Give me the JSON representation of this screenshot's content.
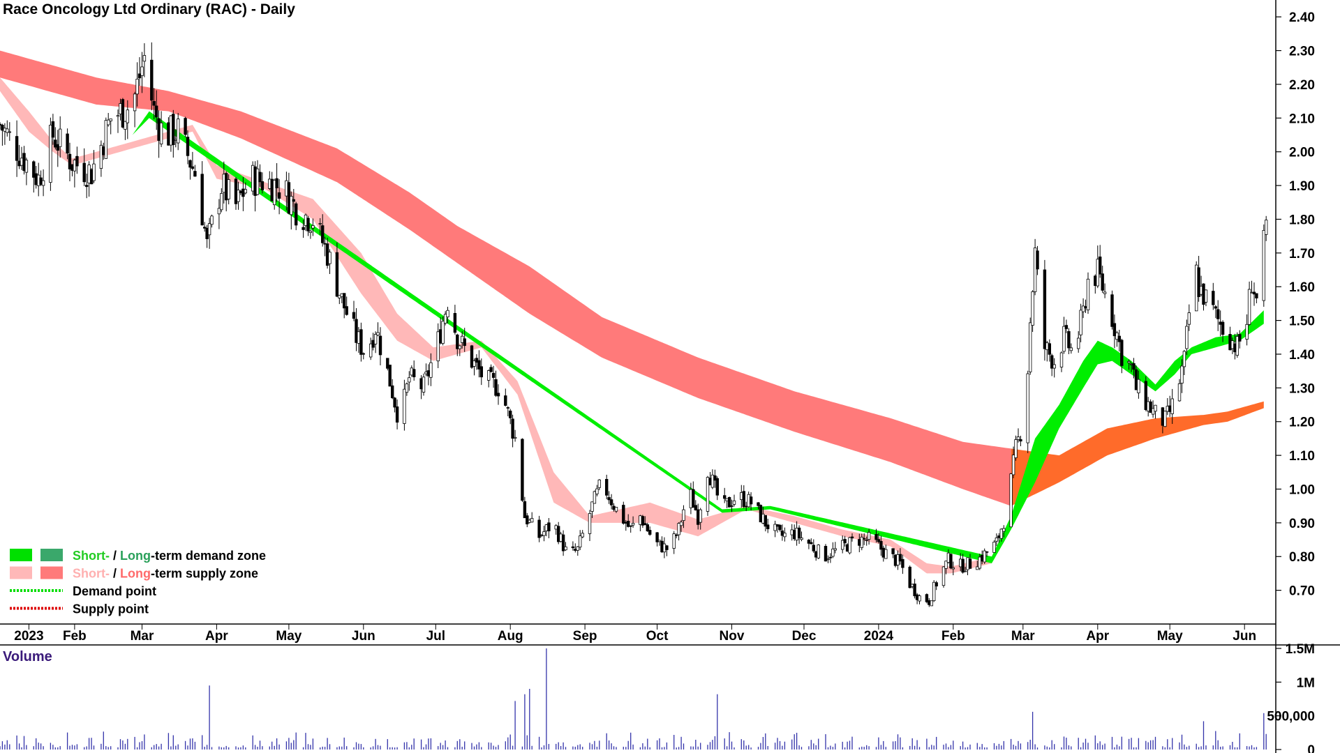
{
  "chart_data": {
    "type": "candlestick",
    "title": "Race Oncology Ltd Ordinary (RAC) - Daily",
    "y_axis": {
      "min": 0.6,
      "max": 2.45,
      "ticks": [
        "0.70",
        "0.80",
        "0.90",
        "1.00",
        "1.10",
        "1.20",
        "1.30",
        "1.40",
        "1.50",
        "1.60",
        "1.70",
        "1.80",
        "1.90",
        "2.00",
        "2.10",
        "2.20",
        "2.30",
        "2.40"
      ],
      "grid": false
    },
    "x_axis": {
      "labels": [
        {
          "label": "2023",
          "day": 12
        },
        {
          "label": "Feb",
          "day": 31
        },
        {
          "label": "Mar",
          "day": 59
        },
        {
          "label": "Apr",
          "day": 90
        },
        {
          "label": "May",
          "day": 120
        },
        {
          "label": "Jun",
          "day": 151
        },
        {
          "label": "Jul",
          "day": 181
        },
        {
          "label": "Aug",
          "day": 212
        },
        {
          "label": "Sep",
          "day": 243
        },
        {
          "label": "Oct",
          "day": 273
        },
        {
          "label": "Nov",
          "day": 304
        },
        {
          "label": "Dec",
          "day": 334
        },
        {
          "label": "2024",
          "day": 365
        },
        {
          "label": "Feb",
          "day": 396
        },
        {
          "label": "Mar",
          "day": 425
        },
        {
          "label": "Apr",
          "day": 456
        },
        {
          "label": "May",
          "day": 486
        },
        {
          "label": "Jun",
          "day": 517
        }
      ],
      "day_range": [
        0,
        530
      ]
    },
    "price_anchors": [
      [
        0,
        2.08
      ],
      [
        8,
        2.0
      ],
      [
        16,
        1.92
      ],
      [
        22,
        2.05
      ],
      [
        30,
        1.97
      ],
      [
        38,
        1.94
      ],
      [
        46,
        2.1
      ],
      [
        55,
        2.14
      ],
      [
        60,
        2.28
      ],
      [
        64,
        2.12
      ],
      [
        68,
        2.05
      ],
      [
        74,
        2.06
      ],
      [
        82,
        1.92
      ],
      [
        86,
        1.72
      ],
      [
        92,
        1.9
      ],
      [
        98,
        1.84
      ],
      [
        104,
        1.92
      ],
      [
        112,
        1.91
      ],
      [
        118,
        1.89
      ],
      [
        124,
        1.82
      ],
      [
        130,
        1.8
      ],
      [
        136,
        1.7
      ],
      [
        142,
        1.56
      ],
      [
        148,
        1.45
      ],
      [
        152,
        1.4
      ],
      [
        156,
        1.48
      ],
      [
        162,
        1.32
      ],
      [
        166,
        1.2
      ],
      [
        170,
        1.33
      ],
      [
        176,
        1.3
      ],
      [
        182,
        1.44
      ],
      [
        186,
        1.56
      ],
      [
        190,
        1.45
      ],
      [
        196,
        1.38
      ],
      [
        202,
        1.32
      ],
      [
        208,
        1.3
      ],
      [
        214,
        1.15
      ],
      [
        218,
        0.92
      ],
      [
        224,
        0.86
      ],
      [
        230,
        0.9
      ],
      [
        236,
        0.8
      ],
      [
        240,
        0.82
      ],
      [
        246,
        0.95
      ],
      [
        250,
        1.02
      ],
      [
        256,
        0.94
      ],
      [
        262,
        0.88
      ],
      [
        266,
        0.92
      ],
      [
        272,
        0.84
      ],
      [
        278,
        0.82
      ],
      [
        282,
        0.88
      ],
      [
        286,
        1.0
      ],
      [
        290,
        0.92
      ],
      [
        294,
        1.06
      ],
      [
        300,
        0.94
      ],
      [
        306,
        0.98
      ],
      [
        312,
        0.96
      ],
      [
        318,
        0.9
      ],
      [
        324,
        0.86
      ],
      [
        330,
        0.87
      ],
      [
        336,
        0.84
      ],
      [
        342,
        0.8
      ],
      [
        348,
        0.82
      ],
      [
        356,
        0.85
      ],
      [
        362,
        0.85
      ],
      [
        368,
        0.81
      ],
      [
        374,
        0.78
      ],
      [
        378,
        0.72
      ],
      [
        382,
        0.68
      ],
      [
        386,
        0.67
      ],
      [
        390,
        0.74
      ],
      [
        394,
        0.79
      ],
      [
        398,
        0.77
      ],
      [
        404,
        0.78
      ],
      [
        408,
        0.8
      ],
      [
        414,
        0.84
      ],
      [
        418,
        0.93
      ],
      [
        422,
        1.12
      ],
      [
        426,
        1.22
      ],
      [
        428,
        1.5
      ],
      [
        430,
        1.7
      ],
      [
        432,
        1.55
      ],
      [
        434,
        1.42
      ],
      [
        438,
        1.38
      ],
      [
        442,
        1.45
      ],
      [
        446,
        1.4
      ],
      [
        450,
        1.52
      ],
      [
        452,
        1.62
      ],
      [
        456,
        1.64
      ],
      [
        460,
        1.56
      ],
      [
        464,
        1.46
      ],
      [
        466,
        1.4
      ],
      [
        470,
        1.36
      ],
      [
        472,
        1.3
      ],
      [
        476,
        1.26
      ],
      [
        480,
        1.22
      ],
      [
        484,
        1.2
      ],
      [
        488,
        1.26
      ],
      [
        492,
        1.38
      ],
      [
        494,
        1.52
      ],
      [
        496,
        1.68
      ],
      [
        498,
        1.6
      ],
      [
        502,
        1.55
      ],
      [
        506,
        1.5
      ],
      [
        510,
        1.46
      ],
      [
        514,
        1.42
      ],
      [
        518,
        1.5
      ],
      [
        520,
        1.62
      ],
      [
        522,
        1.56
      ],
      [
        524,
        1.68
      ],
      [
        526,
        1.76
      ]
    ],
    "zones": {
      "long_term_supply": [
        [
          0,
          2.3,
          2.22
        ],
        [
          40,
          2.22,
          2.14
        ],
        [
          70,
          2.18,
          2.12
        ],
        [
          100,
          2.12,
          2.04
        ],
        [
          140,
          2.01,
          1.91
        ],
        [
          170,
          1.88,
          1.77
        ],
        [
          190,
          1.78,
          1.67
        ],
        [
          220,
          1.66,
          1.52
        ],
        [
          250,
          1.51,
          1.39
        ],
        [
          290,
          1.39,
          1.27
        ],
        [
          330,
          1.29,
          1.17
        ],
        [
          370,
          1.21,
          1.08
        ],
        [
          400,
          1.14,
          1.0
        ],
        [
          420,
          1.12,
          0.95
        ]
      ],
      "long_term_demand_transition": [
        [
          420,
          1.12,
          0.95
        ],
        [
          440,
          1.1,
          1.02
        ],
        [
          460,
          1.18,
          1.1
        ],
        [
          480,
          1.21,
          1.15
        ],
        [
          500,
          1.22,
          1.19
        ],
        [
          510,
          1.23,
          1.2
        ],
        [
          525,
          1.26,
          1.24
        ]
      ],
      "short_term_supply": [
        [
          0,
          2.22,
          2.18
        ],
        [
          12,
          2.12,
          2.06
        ],
        [
          22,
          2.03,
          2.0
        ],
        [
          30,
          1.98,
          1.96
        ],
        [
          80,
          2.08,
          2.06
        ],
        [
          90,
          1.96,
          1.92
        ],
        [
          110,
          1.91,
          1.89
        ],
        [
          130,
          1.86,
          1.8
        ],
        [
          150,
          1.7,
          1.58
        ],
        [
          165,
          1.52,
          1.44
        ],
        [
          180,
          1.42,
          1.38
        ],
        [
          200,
          1.44,
          1.42
        ],
        [
          215,
          1.32,
          1.28
        ],
        [
          230,
          1.05,
          0.96
        ],
        [
          245,
          0.92,
          0.9
        ],
        [
          270,
          0.96,
          0.9
        ],
        [
          290,
          0.91,
          0.86
        ],
        [
          310,
          0.95,
          0.94
        ],
        [
          330,
          0.92,
          0.9
        ],
        [
          350,
          0.88,
          0.86
        ],
        [
          370,
          0.85,
          0.83
        ],
        [
          385,
          0.78,
          0.75
        ],
        [
          395,
          0.77,
          0.75
        ],
        [
          412,
          0.8,
          0.78
        ]
      ],
      "short_term_demand": [
        [
          55,
          2.05,
          2.05
        ],
        [
          62,
          2.12,
          2.1
        ],
        [
          300,
          0.94,
          0.93
        ],
        [
          320,
          0.95,
          0.94
        ],
        [
          412,
          0.8,
          0.78
        ],
        [
          420,
          0.92,
          0.88
        ],
        [
          430,
          1.15,
          1.02
        ],
        [
          440,
          1.25,
          1.18
        ],
        [
          450,
          1.38,
          1.3
        ],
        [
          456,
          1.44,
          1.37
        ],
        [
          462,
          1.42,
          1.38
        ],
        [
          470,
          1.38,
          1.34
        ],
        [
          480,
          1.31,
          1.29
        ],
        [
          488,
          1.38,
          1.34
        ],
        [
          495,
          1.42,
          1.4
        ],
        [
          505,
          1.45,
          1.42
        ],
        [
          515,
          1.46,
          1.44
        ],
        [
          525,
          1.53,
          1.49
        ]
      ]
    },
    "volume": {
      "title": "Volume",
      "max": 1500000,
      "ticks": [
        {
          "label": "0",
          "value": 0
        },
        {
          "label": "500,000",
          "value": 500000
        },
        {
          "label": "1M",
          "value": 1000000
        },
        {
          "label": "1.5M",
          "value": 1500000
        }
      ],
      "spikes": [
        [
          87,
          950000
        ],
        [
          214,
          720000
        ],
        [
          216,
          780000
        ],
        [
          218,
          820000
        ],
        [
          220,
          900000
        ],
        [
          227,
          1500000
        ],
        [
          298,
          820000
        ],
        [
          313,
          1080000
        ],
        [
          418,
          550000
        ],
        [
          425,
          760000
        ],
        [
          429,
          560000
        ],
        [
          482,
          380000
        ],
        [
          500,
          420000
        ],
        [
          525,
          540000
        ]
      ]
    },
    "legend": {
      "position": "bottom-left",
      "items": [
        {
          "swatches": [
            "#00e000",
            "#3aa86b"
          ],
          "parts": [
            {
              "text": "Short-",
              "color": "#22cc22"
            },
            {
              "text": " / ",
              "color": "#000000"
            },
            {
              "text": "Long",
              "color": "#2aa05a"
            },
            {
              "text": "-term demand zone",
              "color": "#000000"
            }
          ]
        },
        {
          "swatches": [
            "#ffb8b8",
            "#ff7a7a"
          ],
          "parts": [
            {
              "text": "Short-",
              "color": "#ffb0b0"
            },
            {
              "text": " / ",
              "color": "#000000"
            },
            {
              "text": "Long",
              "color": "#ff6a6a"
            },
            {
              "text": "-term supply zone",
              "color": "#000000"
            }
          ]
        },
        {
          "line": "#00dd00",
          "parts": [
            {
              "text": "Demand point",
              "color": "#000000"
            }
          ]
        },
        {
          "line": "#dd0000",
          "parts": [
            {
              "text": "Supply point",
              "color": "#000000"
            }
          ]
        }
      ]
    },
    "colors": {
      "long_supply": "#ff7a7a",
      "short_supply": "#ffb8b8",
      "transition": "#ff6b2a",
      "short_demand": "#00ee00",
      "candle": "#000000",
      "volume": "#3333aa"
    }
  }
}
